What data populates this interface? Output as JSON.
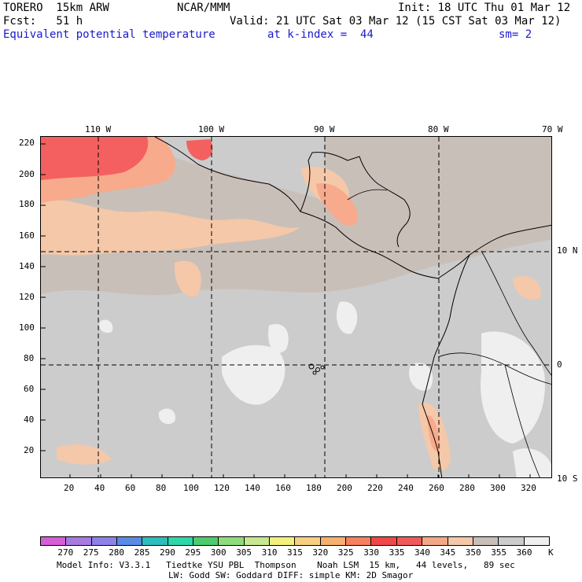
{
  "header": {
    "model": "TORERO  15km ARW",
    "center": "NCAR/MMM",
    "init": "Init: 18 UTC Thu 01 Mar 12",
    "fcst": "Fcst:   51 h",
    "valid": "Valid: 21 UTC Sat 03 Mar 12 (15 CST Sat 03 Mar 12)",
    "field": "Equivalent potential temperature",
    "level": "at k-index =  44",
    "smooth": "sm= 2"
  },
  "map": {
    "top_lon_labels": [
      "110 W",
      "100 W",
      "90 W",
      "80 W",
      "70 W"
    ],
    "right_lat_labels": [
      "10 N",
      "0",
      "10 S"
    ],
    "y_grid_labels": [
      "220",
      "200",
      "180",
      "160",
      "140",
      "120",
      "100",
      "80",
      "60",
      "40",
      "20"
    ],
    "x_grid_labels": [
      "20",
      "40",
      "60",
      "80",
      "100",
      "120",
      "140",
      "160",
      "180",
      "200",
      "220",
      "240",
      "260",
      "280",
      "300",
      "320"
    ],
    "colors": {
      "background": "#c9bfb9",
      "gray": "#cccccc",
      "light": "#efefef",
      "peach": "#f4c8a8",
      "salmon": "#f7aa8c",
      "red": "#f46060",
      "deep_red": "#f24848"
    }
  },
  "colorbar": {
    "labels": [
      "270",
      "275",
      "280",
      "285",
      "290",
      "295",
      "300",
      "305",
      "310",
      "315",
      "320",
      "325",
      "330",
      "335",
      "340",
      "345",
      "350",
      "355",
      "360"
    ],
    "unit": "K",
    "colors": [
      "#d65fd6",
      "#a87be0",
      "#8c82e8",
      "#5a8ce6",
      "#2fbcbc",
      "#2ed6a8",
      "#4ccc6c",
      "#90dc7c",
      "#c6e890",
      "#f4f07c",
      "#f6d080",
      "#f6b070",
      "#f68060",
      "#f04848",
      "#f05a5a",
      "#f4a888",
      "#f4c8a8",
      "#c9bfb9",
      "#cccccc",
      "#efefef"
    ]
  },
  "footer": {
    "line1": "Model Info: V3.3.1   Tiedtke YSU PBL  Thompson    Noah LSM  15 km,   44 levels,   89 sec",
    "line2": "LW: Godd SW: Goddard DIFF: simple KM: 2D Smagor"
  }
}
